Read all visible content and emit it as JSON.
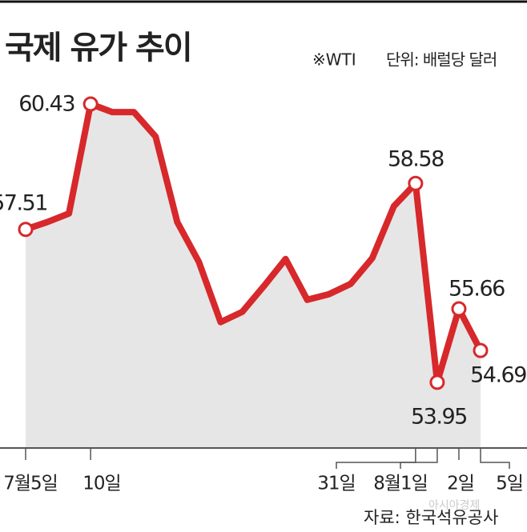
{
  "chart_data": {
    "type": "line",
    "title": "국제 유가 추이",
    "note": "※WTI",
    "unit": "단위: 배럴당 달러",
    "source": "자료: 한국석유공사",
    "watermark": "아시아경제",
    "categories": [
      "7월5일",
      null,
      null,
      "10일",
      null,
      null,
      null,
      null,
      null,
      null,
      null,
      null,
      null,
      null,
      null,
      null,
      null,
      null,
      "31일",
      "8월1일",
      "2일",
      "5일"
    ],
    "values": [
      57.51,
      57.68,
      57.88,
      60.43,
      60.24,
      60.24,
      59.67,
      57.68,
      56.75,
      55.35,
      55.59,
      56.19,
      56.82,
      55.87,
      56.0,
      56.24,
      56.84,
      58.05,
      58.58,
      53.95,
      55.66,
      54.69
    ],
    "color": "#d7282b",
    "area_color": "#e6e6e6",
    "ylim": [
      52.42,
      61.5
    ]
  }
}
